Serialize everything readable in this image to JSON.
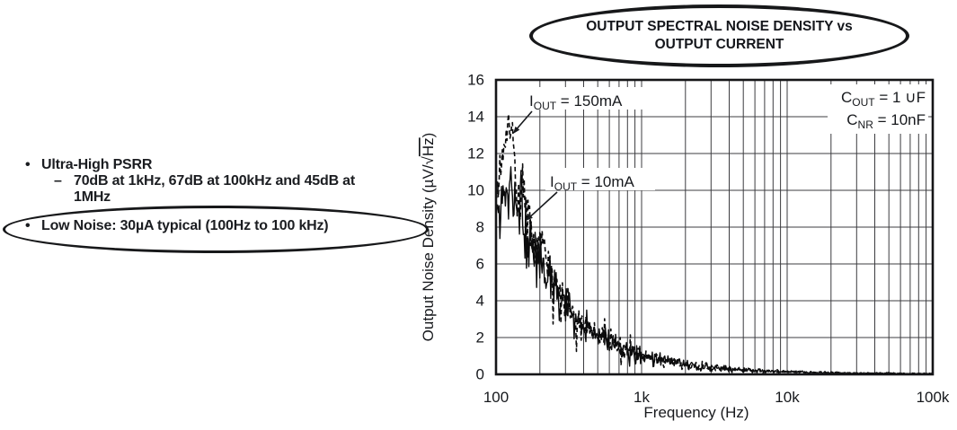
{
  "title": {
    "line1": "OUTPUT SPECTRAL NOISE DENSITY vs",
    "line2": "OUTPUT CURRENT"
  },
  "features": {
    "bullet": "•",
    "dash": "–",
    "item1": "Ultra-High PSRR",
    "item1_detail": "70dB at 1kHz, 67dB at 100kHz and 45dB at",
    "item1_detail2": "1MHz",
    "item2": "Low Noise: 30µA typical (100Hz to 100 kHz)"
  },
  "chart_data": {
    "type": "line",
    "title": "OUTPUT SPECTRAL NOISE DENSITY vs OUTPUT CURRENT",
    "xlabel": "Frequency (Hz)",
    "ylabel": "Output Noise Density (µV/√Hz)",
    "ylabel_parts": {
      "pre": "Output Noise Density (µV/√",
      "overline": "Hz",
      "post": ")"
    },
    "x_scale": "log",
    "x_range": [
      100,
      100000
    ],
    "y_range": [
      0,
      16
    ],
    "grid": "log minor vertical + major horizontal, on",
    "x_ticks": [
      {
        "value": 100,
        "label": "100"
      },
      {
        "value": 1000,
        "label": "1k"
      },
      {
        "value": 10000,
        "label": "10k"
      },
      {
        "value": 100000,
        "label": "100k"
      }
    ],
    "y_ticks": [
      0,
      2,
      4,
      6,
      8,
      10,
      12,
      14,
      16
    ],
    "curve_labels": [
      {
        "main": "I",
        "sub": "OUT",
        "rest": " = 150mA"
      },
      {
        "main": "I",
        "sub": "OUT",
        "rest": " = 10mA"
      }
    ],
    "conditions": [
      {
        "main": "C",
        "sub": "OUT",
        "rest": " = 1 ∪F"
      },
      {
        "main": "C",
        "sub": "NR",
        "rest": " = 10nF"
      }
    ],
    "series": [
      {
        "name": "IOUT = 150mA",
        "style": "dashed",
        "trend": [
          [
            100,
            9.7
          ],
          [
            108,
            11.3
          ],
          [
            115,
            12.9
          ],
          [
            122,
            13.7
          ],
          [
            128,
            13.2
          ],
          [
            134,
            11.6
          ],
          [
            140,
            9.9
          ],
          [
            146,
            9.3
          ],
          [
            152,
            10.4
          ],
          [
            158,
            9.5
          ],
          [
            165,
            8.7
          ],
          [
            174,
            7.7
          ],
          [
            184,
            6.7
          ],
          [
            196,
            6.9
          ],
          [
            208,
            7.5
          ],
          [
            222,
            6.3
          ],
          [
            240,
            5.4
          ],
          [
            262,
            4.8
          ],
          [
            290,
            4.2
          ],
          [
            320,
            3.7
          ],
          [
            355,
            3.25
          ],
          [
            400,
            2.85
          ],
          [
            450,
            2.5
          ],
          [
            510,
            2.15
          ],
          [
            580,
            1.85
          ],
          [
            665,
            1.6
          ],
          [
            765,
            1.36
          ],
          [
            885,
            1.15
          ],
          [
            1060,
            0.97
          ],
          [
            1320,
            0.8
          ],
          [
            1670,
            0.64
          ],
          [
            2120,
            0.51
          ],
          [
            2720,
            0.41
          ],
          [
            3520,
            0.33
          ],
          [
            4650,
            0.26
          ],
          [
            6100,
            0.21
          ],
          [
            8100,
            0.165
          ],
          [
            10600,
            0.135
          ],
          [
            14200,
            0.108
          ],
          [
            19200,
            0.088
          ],
          [
            27500,
            0.072
          ],
          [
            38500,
            0.06
          ],
          [
            56000,
            0.05
          ],
          [
            76000,
            0.045
          ],
          [
            100000,
            0.04
          ]
        ],
        "noise_amp": [
          [
            100,
            0.7
          ],
          [
            140,
            0.9
          ],
          [
            200,
            0.8
          ],
          [
            300,
            0.6
          ],
          [
            500,
            0.45
          ],
          [
            800,
            0.35
          ],
          [
            1200,
            0.28
          ],
          [
            2000,
            0.2
          ],
          [
            3500,
            0.13
          ],
          [
            6000,
            0.085
          ],
          [
            10000,
            0.055
          ],
          [
            20000,
            0.038
          ],
          [
            100000,
            0.02
          ]
        ]
      },
      {
        "name": "IOUT = 10mA",
        "style": "solid",
        "trend": [
          [
            100,
            10.4
          ],
          [
            106,
            8.7
          ],
          [
            112,
            10.9
          ],
          [
            118,
            9.1
          ],
          [
            124,
            11.0
          ],
          [
            130,
            8.9
          ],
          [
            136,
            10.1
          ],
          [
            142,
            8.2
          ],
          [
            148,
            9.5
          ],
          [
            154,
            7.9
          ],
          [
            160,
            6.2
          ],
          [
            166,
            7.9
          ],
          [
            174,
            7.1
          ],
          [
            182,
            7.4
          ],
          [
            192,
            6.3
          ],
          [
            205,
            6.2
          ],
          [
            220,
            5.4
          ],
          [
            238,
            5.0
          ],
          [
            258,
            4.5
          ],
          [
            285,
            4.0
          ],
          [
            315,
            3.5
          ],
          [
            350,
            3.1
          ],
          [
            395,
            2.75
          ],
          [
            445,
            2.4
          ],
          [
            505,
            2.05
          ],
          [
            575,
            1.8
          ],
          [
            660,
            1.55
          ],
          [
            760,
            1.32
          ],
          [
            880,
            1.12
          ],
          [
            1050,
            0.95
          ],
          [
            1300,
            0.78
          ],
          [
            1650,
            0.63
          ],
          [
            2100,
            0.5
          ],
          [
            2700,
            0.4
          ],
          [
            3500,
            0.32
          ],
          [
            4600,
            0.26
          ],
          [
            6000,
            0.2
          ],
          [
            8000,
            0.16
          ],
          [
            10500,
            0.13
          ],
          [
            14000,
            0.105
          ],
          [
            19000,
            0.085
          ],
          [
            27000,
            0.07
          ],
          [
            38000,
            0.06
          ],
          [
            55000,
            0.05
          ],
          [
            75000,
            0.045
          ],
          [
            100000,
            0.04
          ]
        ],
        "noise_amp": [
          [
            100,
            1.5
          ],
          [
            150,
            1.4
          ],
          [
            200,
            0.95
          ],
          [
            300,
            0.65
          ],
          [
            500,
            0.5
          ],
          [
            800,
            0.38
          ],
          [
            1200,
            0.3
          ],
          [
            2000,
            0.22
          ],
          [
            3500,
            0.14
          ],
          [
            6000,
            0.09
          ],
          [
            10000,
            0.06
          ],
          [
            20000,
            0.04
          ],
          [
            100000,
            0.022
          ]
        ]
      }
    ]
  }
}
